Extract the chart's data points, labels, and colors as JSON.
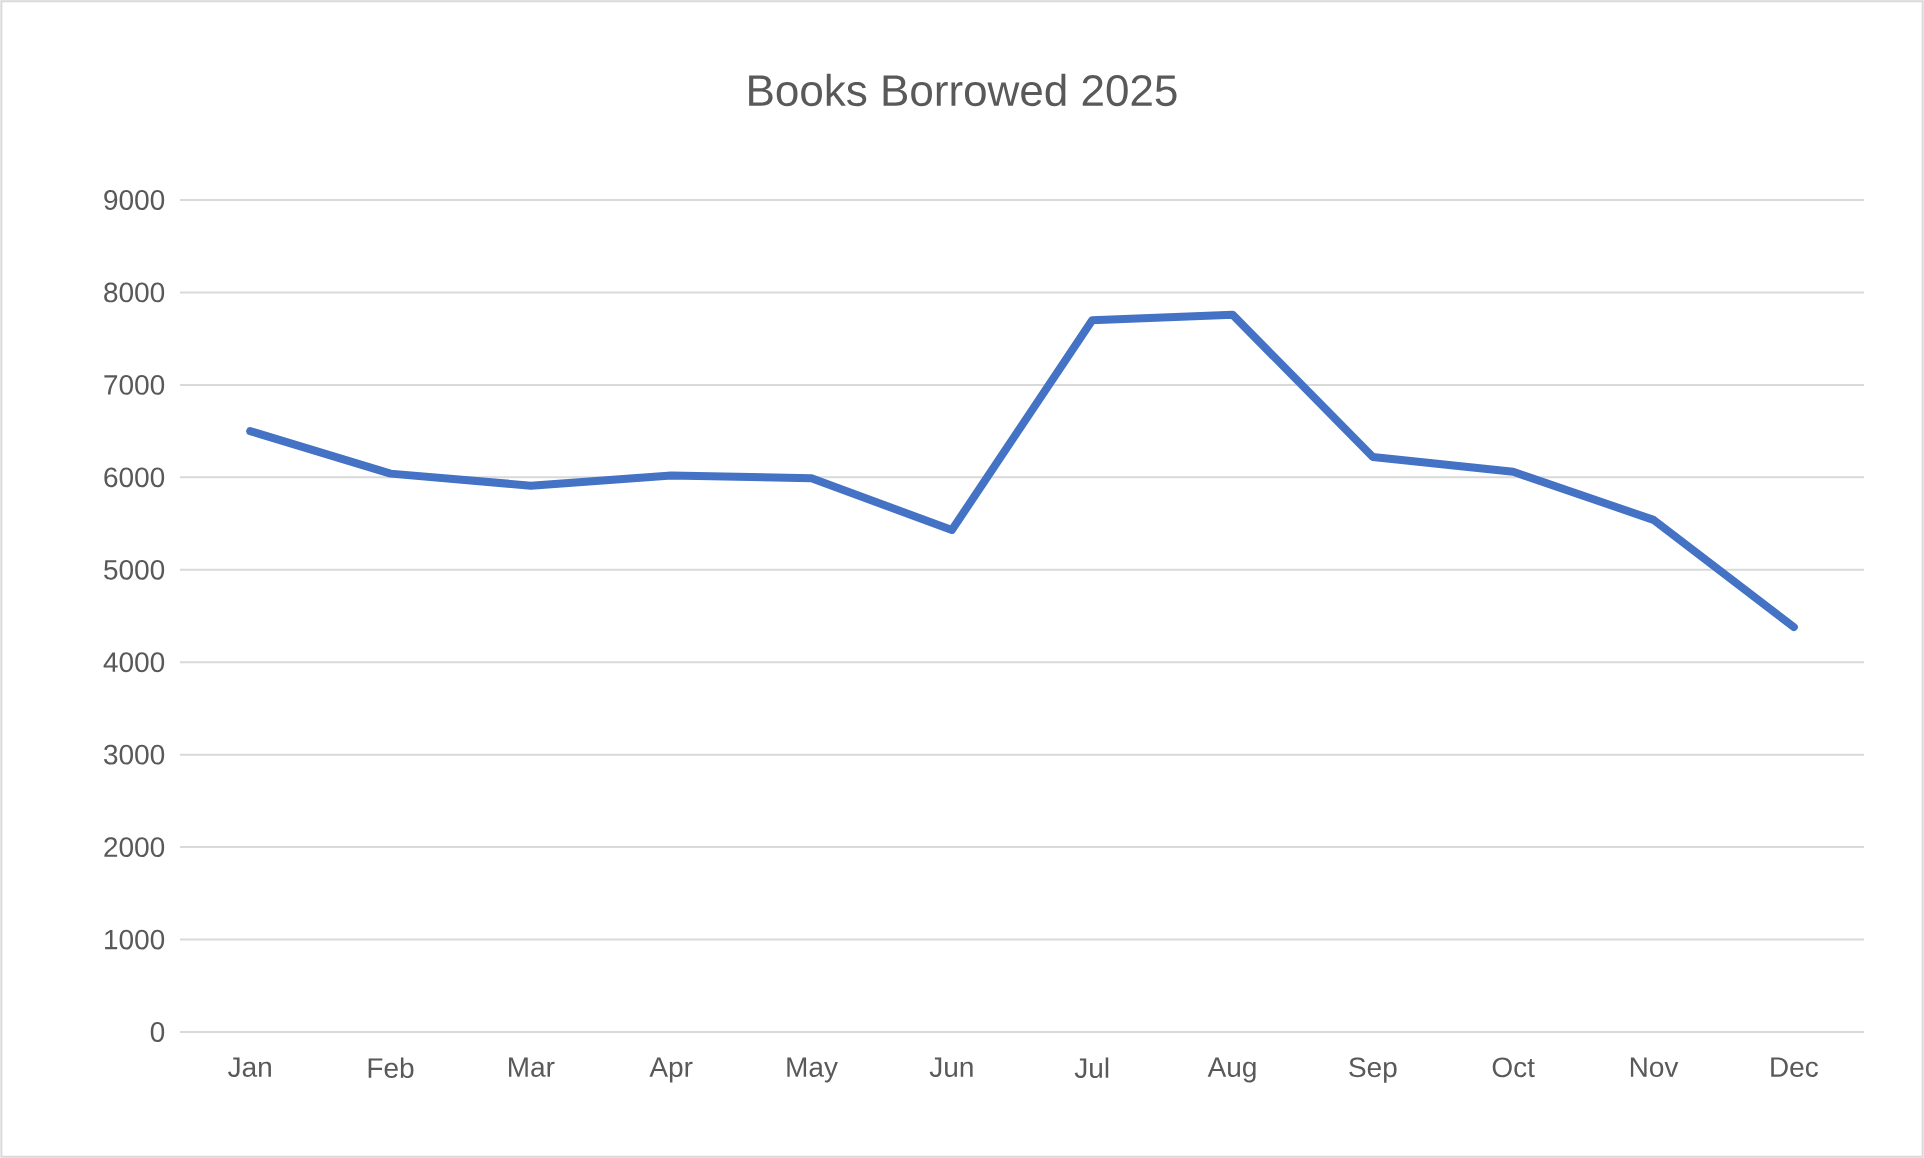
{
  "chart_data": {
    "type": "line",
    "title": "Books Borrowed 2025",
    "categories": [
      "Jan",
      "Feb",
      "Mar",
      "Apr",
      "May",
      "Jun",
      "Jul",
      "Aug",
      "Sep",
      "Oct",
      "Nov",
      "Dec"
    ],
    "values": [
      6500,
      6040,
      5910,
      6020,
      5990,
      5430,
      7700,
      7760,
      6220,
      6060,
      5540,
      4380
    ],
    "color": "#4472c4",
    "ylim": [
      0,
      9000
    ],
    "yticks": [
      0,
      1000,
      2000,
      3000,
      4000,
      5000,
      6000,
      7000,
      8000,
      9000
    ],
    "grid": "y"
  }
}
